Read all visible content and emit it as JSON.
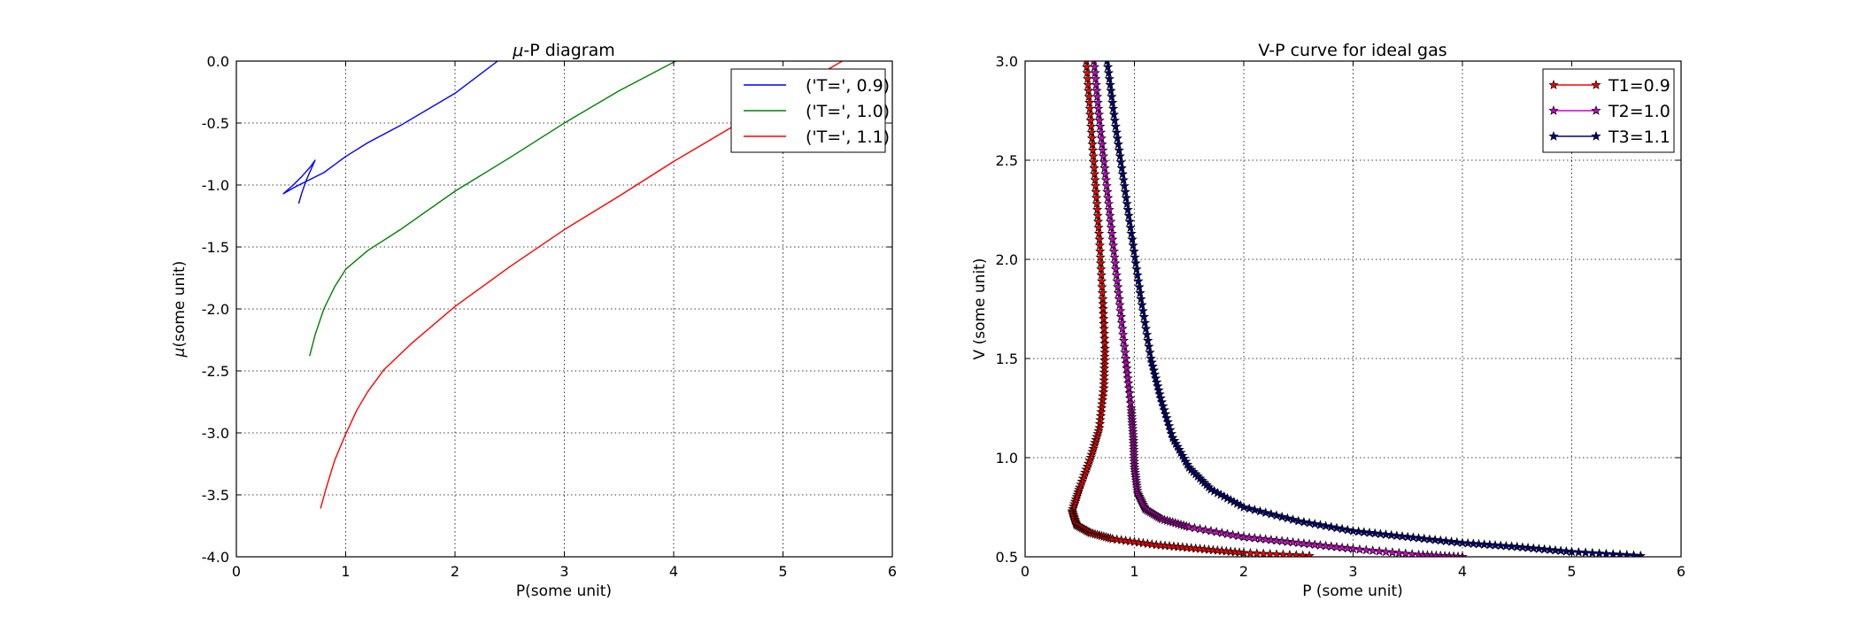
{
  "chart_data": [
    {
      "type": "line",
      "title_pre": "μ",
      "title_post": "-P diagram",
      "xlabel": "P(some unit)",
      "ylabel_pre": "μ",
      "ylabel_post": "(some unit)",
      "xlim": [
        0,
        6
      ],
      "ylim": [
        -4.0,
        0.0
      ],
      "xticks": [
        "0",
        "1",
        "2",
        "3",
        "4",
        "5",
        "6"
      ],
      "yticks": [
        "0.0",
        "-0.5",
        "-1.0",
        "-1.5",
        "-2.0",
        "-2.5",
        "-3.0",
        "-3.5",
        "-4.0"
      ],
      "grid": true,
      "legend_position": "top-right",
      "series": [
        {
          "name": "('T=', 0.9)",
          "color": "#0000ff",
          "points": [
            [
              0.57,
              -1.15
            ],
            [
              0.6,
              -1.06
            ],
            [
              0.64,
              -0.96
            ],
            [
              0.68,
              -0.88
            ],
            [
              0.72,
              -0.8
            ],
            [
              0.68,
              -0.85
            ],
            [
              0.6,
              -0.93
            ],
            [
              0.52,
              -1.0
            ],
            [
              0.43,
              -1.07
            ],
            [
              0.55,
              -1.01
            ],
            [
              0.8,
              -0.9
            ],
            [
              1.0,
              -0.77
            ],
            [
              1.2,
              -0.66
            ],
            [
              1.5,
              -0.52
            ],
            [
              2.0,
              -0.26
            ],
            [
              2.39,
              0.0
            ]
          ]
        },
        {
          "name": "('T=', 1.0)",
          "color": "#008000",
          "points": [
            [
              0.67,
              -2.38
            ],
            [
              0.72,
              -2.21
            ],
            [
              0.8,
              -2.0
            ],
            [
              0.9,
              -1.82
            ],
            [
              1.0,
              -1.68
            ],
            [
              1.2,
              -1.53
            ],
            [
              1.5,
              -1.36
            ],
            [
              2.0,
              -1.05
            ],
            [
              2.5,
              -0.78
            ],
            [
              3.0,
              -0.5
            ],
            [
              3.5,
              -0.24
            ],
            [
              4.02,
              0.0
            ]
          ]
        },
        {
          "name": "('T=', 1.1)",
          "color": "#ff0000",
          "points": [
            [
              0.77,
              -3.61
            ],
            [
              0.82,
              -3.45
            ],
            [
              0.9,
              -3.22
            ],
            [
              1.0,
              -3.01
            ],
            [
              1.1,
              -2.82
            ],
            [
              1.2,
              -2.67
            ],
            [
              1.35,
              -2.49
            ],
            [
              1.6,
              -2.28
            ],
            [
              2.0,
              -1.98
            ],
            [
              2.5,
              -1.66
            ],
            [
              3.0,
              -1.36
            ],
            [
              3.5,
              -1.09
            ],
            [
              4.0,
              -0.81
            ],
            [
              4.5,
              -0.55
            ],
            [
              5.0,
              -0.28
            ],
            [
              5.6,
              0.03
            ]
          ]
        }
      ]
    },
    {
      "type": "line",
      "title": "V-P curve for ideal gas",
      "xlabel": "P (some unit)",
      "ylabel": "V (some unit)",
      "xlim": [
        0,
        6
      ],
      "ylim": [
        0.5,
        3.0
      ],
      "xticks": [
        "0",
        "1",
        "2",
        "3",
        "4",
        "5",
        "6"
      ],
      "yticks": [
        "0.5",
        "1.0",
        "1.5",
        "2.0",
        "2.5",
        "3.0"
      ],
      "grid": true,
      "marker": "star",
      "legend_position": "top-right",
      "series": [
        {
          "name": "T1=0.9",
          "color": "#ff0000",
          "points": [
            [
              0.56,
              3.0
            ],
            [
              0.6,
              2.7
            ],
            [
              0.64,
              2.4
            ],
            [
              0.68,
              2.1
            ],
            [
              0.71,
              1.8
            ],
            [
              0.73,
              1.55
            ],
            [
              0.72,
              1.35
            ],
            [
              0.68,
              1.15
            ],
            [
              0.6,
              1.0
            ],
            [
              0.5,
              0.85
            ],
            [
              0.43,
              0.73
            ],
            [
              0.47,
              0.66
            ],
            [
              0.6,
              0.62
            ],
            [
              0.8,
              0.59
            ],
            [
              1.2,
              0.56
            ],
            [
              1.6,
              0.54
            ],
            [
              2.0,
              0.52
            ],
            [
              2.6,
              0.505
            ]
          ]
        },
        {
          "name": "T2=1.0",
          "color": "#cc00cc",
          "points": [
            [
              0.63,
              3.0
            ],
            [
              0.68,
              2.7
            ],
            [
              0.74,
              2.4
            ],
            [
              0.8,
              2.1
            ],
            [
              0.86,
              1.8
            ],
            [
              0.92,
              1.5
            ],
            [
              0.97,
              1.25
            ],
            [
              0.99,
              1.1
            ],
            [
              1.0,
              0.95
            ],
            [
              1.03,
              0.82
            ],
            [
              1.1,
              0.74
            ],
            [
              1.25,
              0.69
            ],
            [
              1.5,
              0.65
            ],
            [
              2.0,
              0.6
            ],
            [
              2.5,
              0.57
            ],
            [
              3.0,
              0.54
            ],
            [
              3.6,
              0.51
            ],
            [
              4.0,
              0.5
            ]
          ]
        },
        {
          "name": "T3=1.1",
          "color": "#000080",
          "points": [
            [
              0.75,
              3.0
            ],
            [
              0.82,
              2.7
            ],
            [
              0.9,
              2.4
            ],
            [
              0.98,
              2.1
            ],
            [
              1.06,
              1.8
            ],
            [
              1.15,
              1.5
            ],
            [
              1.24,
              1.3
            ],
            [
              1.35,
              1.1
            ],
            [
              1.5,
              0.95
            ],
            [
              1.7,
              0.84
            ],
            [
              2.0,
              0.75
            ],
            [
              2.5,
              0.68
            ],
            [
              3.0,
              0.63
            ],
            [
              3.5,
              0.6
            ],
            [
              4.0,
              0.57
            ],
            [
              4.5,
              0.55
            ],
            [
              5.0,
              0.525
            ],
            [
              5.63,
              0.505
            ]
          ]
        }
      ]
    }
  ]
}
